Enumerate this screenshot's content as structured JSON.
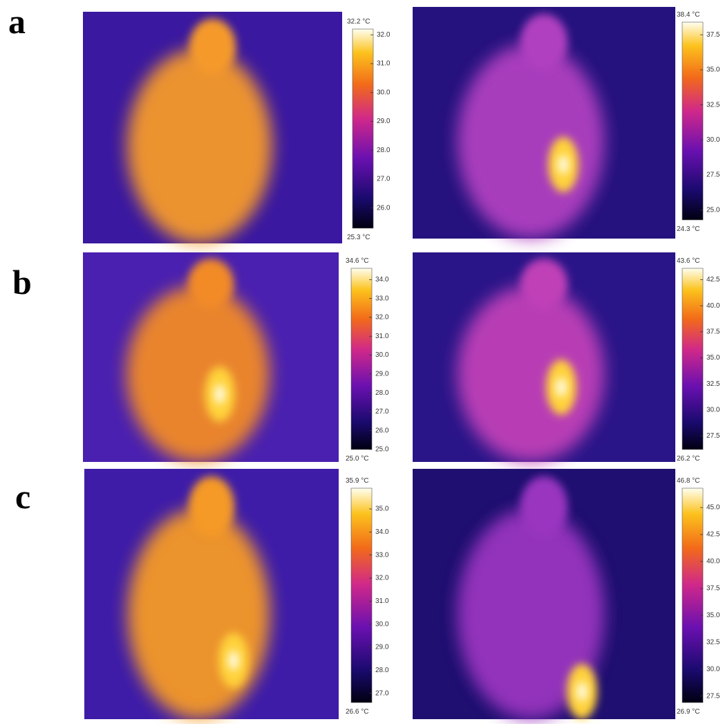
{
  "rows": [
    {
      "label": "a",
      "panels": [
        {
          "max_label": "32.2 °C",
          "min_label": "25.3 °C",
          "range": [
            25.3,
            32.2
          ],
          "ticks": [
            {
              "value": 32,
              "label": "32.0"
            },
            {
              "value": 31,
              "label": "31.0"
            },
            {
              "value": 30,
              "label": "30.0"
            },
            {
              "value": 29,
              "label": "29.0"
            },
            {
              "value": 28,
              "label": "28.0"
            },
            {
              "value": 27,
              "label": "27.0"
            },
            {
              "value": 26,
              "label": "26.0"
            }
          ]
        },
        {
          "max_label": "38.4 °C",
          "min_label": "24.3 °C",
          "range": [
            24.3,
            38.4
          ],
          "ticks": [
            37.5,
            {
              "value": 35,
              "label": "35.0"
            },
            32.5,
            {
              "value": 30,
              "label": "30.0"
            },
            27.5,
            {
              "value": 25,
              "label": "25.0"
            }
          ]
        }
      ]
    },
    {
      "label": "b",
      "panels": [
        {
          "max_label": "34.6 °C",
          "min_label": "25.0 °C",
          "range": [
            25.0,
            34.6
          ],
          "ticks": [
            {
              "value": 34,
              "label": "34.0"
            },
            {
              "value": 33,
              "label": "33.0"
            },
            {
              "value": 32,
              "label": "32.0"
            },
            {
              "value": 31,
              "label": "31.0"
            },
            {
              "value": 30,
              "label": "30.0"
            },
            {
              "value": 29,
              "label": "29.0"
            },
            {
              "value": 28,
              "label": "28.0"
            },
            {
              "value": 27,
              "label": "27.0"
            },
            {
              "value": 26,
              "label": "26.0"
            },
            {
              "value": 25,
              "label": "25.0"
            }
          ]
        },
        {
          "max_label": "43.6 °C",
          "min_label": "26.2 °C",
          "range": [
            26.2,
            43.6
          ],
          "ticks": [
            42.5,
            {
              "value": 40,
              "label": "40.0"
            },
            37.5,
            {
              "value": 35,
              "label": "35.0"
            },
            32.5,
            {
              "value": 30,
              "label": "30.0"
            },
            27.5
          ]
        }
      ]
    },
    {
      "label": "c",
      "panels": [
        {
          "max_label": "35.9 °C",
          "min_label": "26.6 °C",
          "range": [
            26.6,
            35.9
          ],
          "ticks": [
            {
              "value": 35,
              "label": "35.0"
            },
            {
              "value": 34,
              "label": "34.0"
            },
            {
              "value": 33,
              "label": "33.0"
            },
            {
              "value": 32,
              "label": "32.0"
            },
            {
              "value": 31,
              "label": "31.0"
            },
            {
              "value": 30,
              "label": "30.0"
            },
            {
              "value": 29,
              "label": "29.0"
            },
            {
              "value": 28,
              "label": "28.0"
            },
            {
              "value": 27,
              "label": "27.0"
            }
          ]
        },
        {
          "max_label": "46.8 °C",
          "min_label": "26.9 °C",
          "range": [
            26.9,
            46.8
          ],
          "ticks": [
            {
              "value": 45,
              "label": "45.0"
            },
            42.5,
            {
              "value": 40,
              "label": "40.0"
            },
            37.5,
            {
              "value": 35,
              "label": "35.0"
            },
            32.5,
            {
              "value": 30,
              "label": "30.0"
            },
            27.5
          ]
        }
      ]
    }
  ]
}
